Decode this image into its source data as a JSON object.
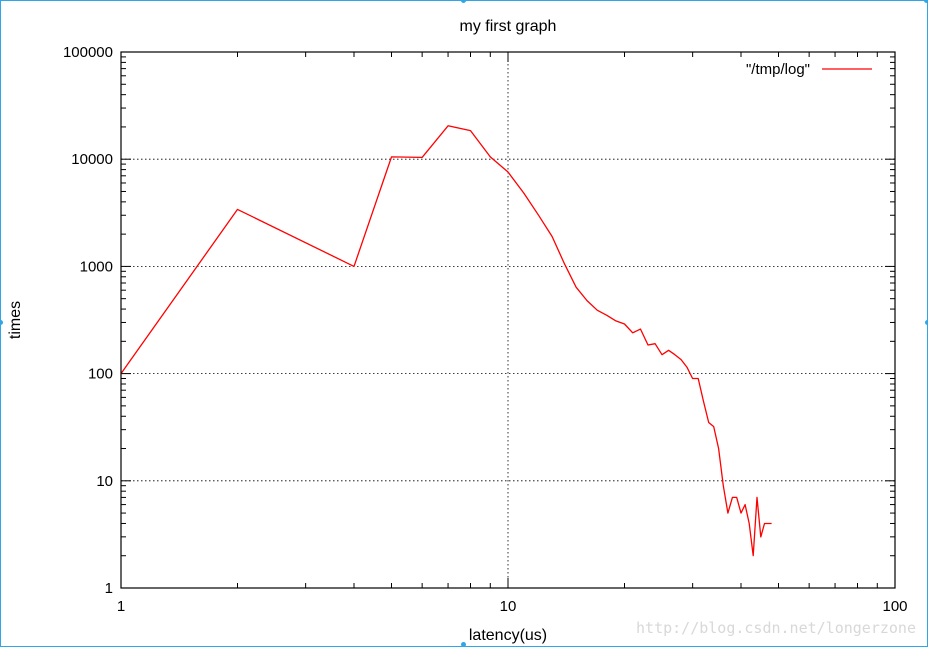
{
  "chart_data": {
    "type": "line",
    "title": "my first graph",
    "xlabel": "latency(us)",
    "ylabel": "times",
    "xscale": "log",
    "yscale": "log",
    "xlim": [
      1,
      100
    ],
    "ylim": [
      1,
      100000
    ],
    "x_ticks": [
      "1",
      "10",
      "100"
    ],
    "y_ticks": [
      "1",
      "10",
      "100",
      "1000",
      "10000",
      "100000"
    ],
    "grid": "dotted, at major ticks",
    "legend_position": "top-right",
    "series": [
      {
        "name": "\"/tmp/log\"",
        "color": "#ff0000",
        "x": [
          1,
          2,
          4,
          5,
          6,
          7,
          8,
          9,
          10,
          11,
          12,
          13,
          14,
          15,
          16,
          17,
          18,
          19,
          20,
          21,
          22,
          23,
          24,
          25,
          26,
          27,
          28,
          29,
          30,
          31,
          32,
          33,
          34,
          35,
          36,
          37,
          38,
          39,
          40,
          41,
          42,
          43,
          44,
          45,
          46,
          47,
          48
        ],
        "y": [
          100,
          3400,
          1000,
          10500,
          10400,
          20500,
          18500,
          10500,
          7600,
          4800,
          3000,
          1900,
          1050,
          640,
          480,
          390,
          350,
          310,
          290,
          240,
          260,
          185,
          190,
          150,
          165,
          150,
          135,
          115,
          90,
          90,
          55,
          35,
          32,
          20,
          9,
          5,
          7,
          7,
          5,
          6,
          4,
          2,
          7,
          3,
          4,
          4,
          4
        ]
      }
    ]
  },
  "watermark": "http://blog.csdn.net/longerzone",
  "frame_color": "#2ea6e8"
}
